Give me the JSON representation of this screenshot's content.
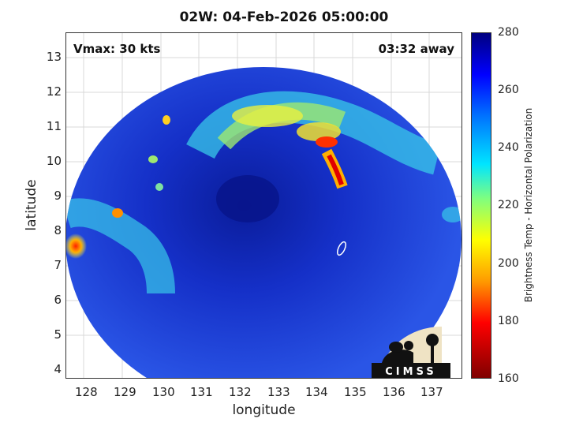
{
  "title": "02W: 04-Feb-2026 05:00:00",
  "annotations": {
    "vmax": "Vmax: 30 kts",
    "time_away": "03:32 away"
  },
  "axes": {
    "xlabel": "longitude",
    "ylabel": "latitude",
    "xticks": [
      "128",
      "129",
      "130",
      "131",
      "132",
      "133",
      "134",
      "135",
      "136",
      "137"
    ],
    "yticks": [
      "13",
      "12",
      "11",
      "10",
      "9",
      "8",
      "7",
      "6",
      "5",
      "4"
    ],
    "xlim": [
      127.5,
      137.6
    ],
    "ylim": [
      3.8,
      13.7
    ],
    "grid": true
  },
  "colorbar": {
    "label": "Brightness Temp - Horizontal Polarization",
    "ticks": [
      "280",
      "260",
      "240",
      "220",
      "200",
      "180",
      "160"
    ],
    "range": [
      160,
      280
    ],
    "colormap": "jet"
  },
  "logo": {
    "text": "CIMSS"
  },
  "colors": {
    "background_field": "#1f3fd8",
    "center": "#0d1f9e",
    "band": "#3fd0e0",
    "convection": "#ff3000"
  }
}
